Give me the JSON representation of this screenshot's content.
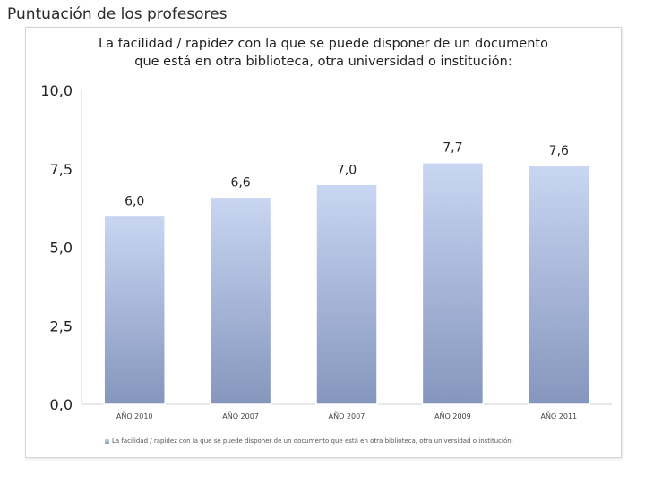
{
  "page": {
    "title": "Puntuación de los profesores"
  },
  "chart_data": {
    "type": "bar",
    "title_lines": [
      "La facilidad / rapidez con la que se puede disponer de un documento",
      "que está en otra biblioteca, otra universidad o institución:"
    ],
    "categories": [
      "AÑO 2010",
      "AÑO 2007",
      "AÑO 2007",
      "AÑO 2009",
      "AÑO 2011"
    ],
    "series": [
      {
        "name": "La facilidad / rapidez con la que se puede disponer de un documento que está en otra biblioteca, otra universidad o institución:",
        "values": [
          6.0,
          6.6,
          7.0,
          7.7,
          7.6
        ],
        "labels": [
          "6,0",
          "6,6",
          "7,0",
          "7,7",
          "7,6"
        ]
      }
    ],
    "yticks": [
      0,
      2.5,
      5,
      7.5,
      10
    ],
    "ytick_labels": [
      "0,0",
      "2,5",
      "5,0",
      "7,5",
      "10,0"
    ],
    "ylim": [
      0,
      10
    ],
    "grid": false,
    "legend_position": "bottom",
    "colors": {
      "bar_top": "#c9d6f3",
      "bar_bottom": "#8596bd",
      "bar_edge": "#ffffff",
      "axis": "#d0d0d0"
    }
  }
}
